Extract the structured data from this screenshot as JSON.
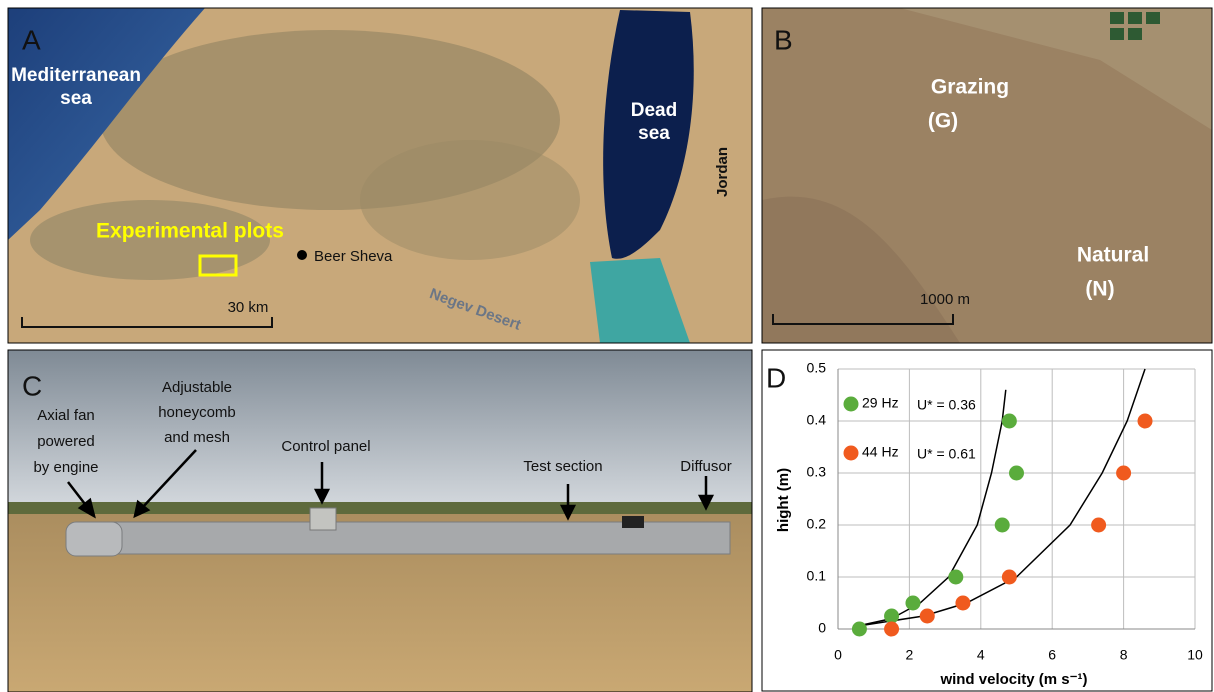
{
  "panels": {
    "a": {
      "letter": "A",
      "sea_label": [
        "Mediterranean",
        "sea"
      ],
      "dead_sea": [
        "Dead",
        "sea"
      ],
      "jordan": "Jordan",
      "plots": "Experimental plots",
      "city": "Beer Sheva",
      "desert": "Negev Desert",
      "scale": "30 km"
    },
    "b": {
      "letter": "B",
      "grazing": [
        "Grazing",
        "(G)"
      ],
      "natural": [
        "Natural",
        "(N)"
      ],
      "scale": "1000 m"
    },
    "c": {
      "letter": "C",
      "fan": [
        "Axial fan",
        "powered",
        "by engine"
      ],
      "honeycomb": [
        "Adjustable",
        "honeycomb",
        "and mesh"
      ],
      "panel": "Control panel",
      "test": "Test section",
      "diffusor": "Diffusor"
    },
    "d": {
      "letter": "D"
    }
  },
  "chart_data": {
    "type": "scatter",
    "xlabel": "wind velocity (m s⁻¹)",
    "ylabel": "hight (m)",
    "xlim": [
      0,
      10
    ],
    "xticks": [
      0,
      2,
      4,
      6,
      8,
      10
    ],
    "ylim": [
      0,
      0.5
    ],
    "yticks": [
      0,
      0.1,
      0.2,
      0.3,
      0.4,
      0.5
    ],
    "grid": true,
    "series": [
      {
        "name": "29 Hz",
        "color": "#5aac3c",
        "x": [
          0.6,
          1.5,
          2.1,
          3.3,
          4.6,
          5.0,
          4.8
        ],
        "values": [
          0,
          0.025,
          0.05,
          0.1,
          0.2,
          0.3,
          0.4
        ]
      },
      {
        "name": "44 Hz",
        "color": "#f05a1e",
        "x": [
          1.5,
          2.5,
          3.5,
          4.8,
          7.3,
          8.0,
          8.6
        ],
        "values": [
          0,
          0.025,
          0.05,
          0.1,
          0.2,
          0.3,
          0.4
        ]
      }
    ],
    "annotations": [
      "U* = 0.36",
      "U* = 0.61"
    ],
    "fits": [
      {
        "color": "#000000",
        "x": [
          0.5,
          1.5,
          2.3,
          3.1,
          3.9,
          4.3,
          4.6,
          4.7
        ],
        "y": [
          0.005,
          0.02,
          0.05,
          0.1,
          0.2,
          0.3,
          0.4,
          0.46
        ]
      },
      {
        "color": "#000000",
        "x": [
          0.5,
          2.4,
          3.6,
          5.0,
          6.5,
          7.4,
          8.1,
          8.6
        ],
        "y": [
          0.005,
          0.025,
          0.05,
          0.1,
          0.2,
          0.3,
          0.4,
          0.5
        ]
      }
    ]
  }
}
